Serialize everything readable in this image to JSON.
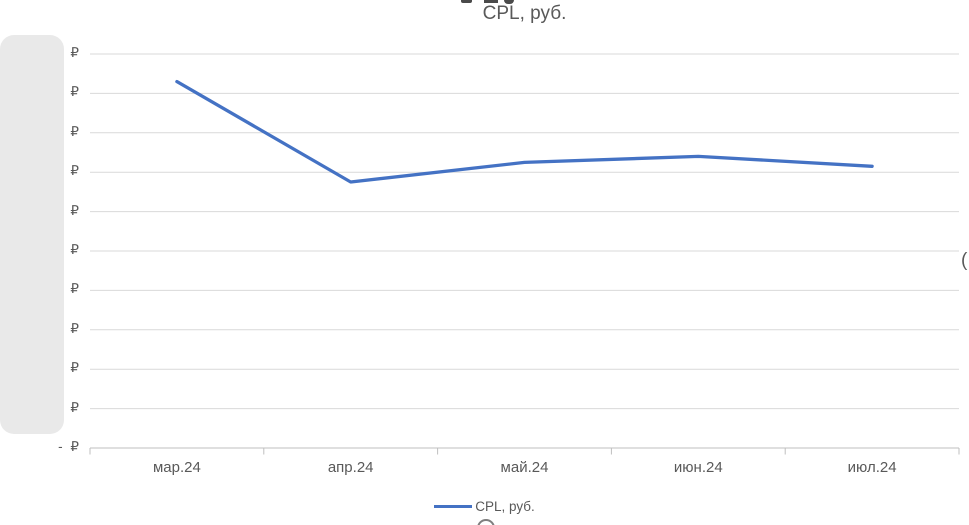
{
  "chart": {
    "title": "CPL, руб.",
    "legend": {
      "label": "CPL, руб.",
      "marker_color": "#4472c4"
    },
    "colors": {
      "series_line": "#4472c4",
      "gridline": "#d9d9d9",
      "axis_line": "#bfbfbf",
      "text": "#595959",
      "overlay_box": "#e9e9e9"
    }
  },
  "chart_data": {
    "type": "line",
    "title": "CPL, руб.",
    "categories": [
      "мар.24",
      "апр.24",
      "май.24",
      "июн.24",
      "июл.24"
    ],
    "series": [
      {
        "name": "CPL, руб.",
        "color": "#4472c4",
        "values": [
          9.3,
          6.75,
          7.25,
          7.4,
          7.15
        ]
      }
    ],
    "ylim": [
      0,
      10
    ],
    "y_tick_labels_top_to_bottom": [
      "₽",
      "₽",
      "₽",
      "₽",
      "₽",
      "₽",
      "₽",
      "₽",
      "₽",
      "₽",
      "- ₽"
    ],
    "y_axis_note": "numeric part of y-axis labels hidden behind gray overlay; only currency sign visible; values estimated in gridline units",
    "grid": true,
    "legend_position": "bottom"
  },
  "clipped_fragments": {
    "right_edge_text": "("
  }
}
